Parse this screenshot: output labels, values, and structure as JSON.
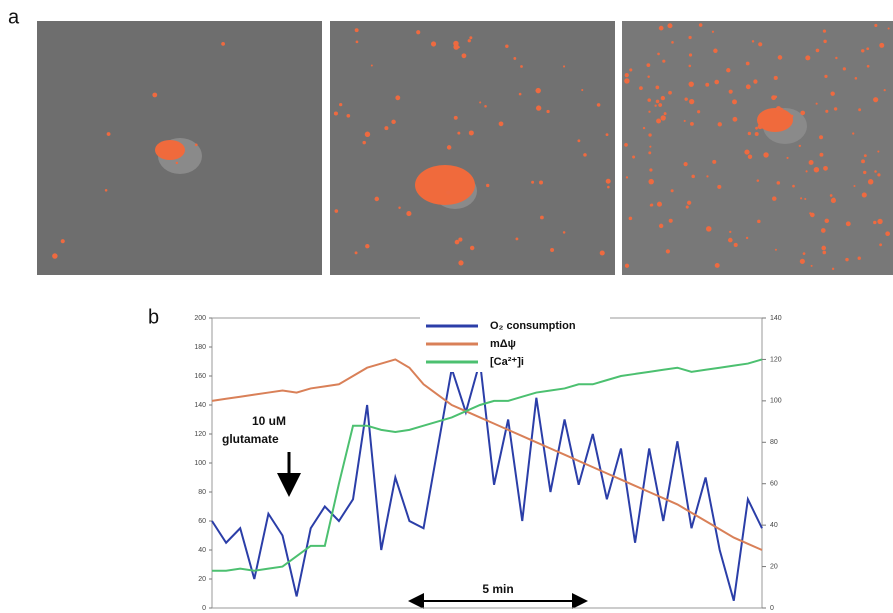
{
  "panel_labels": [
    "a",
    "b"
  ],
  "chart_data": {
    "type": "line",
    "categories": [
      null,
      null,
      null,
      null,
      null,
      null,
      null,
      null,
      null,
      null,
      null,
      null,
      null,
      null,
      null,
      null,
      null,
      null,
      null,
      null,
      null,
      null,
      null,
      null,
      null,
      null,
      null,
      null,
      null,
      null,
      null,
      null,
      null,
      null,
      null,
      null,
      null,
      null,
      null,
      null
    ],
    "series": [
      {
        "name": "O₂ consumption",
        "color": "#2b3ea8",
        "values": [
          60,
          45,
          55,
          20,
          65,
          50,
          8,
          55,
          70,
          60,
          75,
          140,
          40,
          90,
          60,
          55,
          110,
          165,
          135,
          170,
          85,
          130,
          60,
          145,
          80,
          130,
          85,
          120,
          75,
          110,
          45,
          110,
          60,
          115,
          55,
          90,
          40,
          5,
          75,
          55
        ]
      },
      {
        "name": "mΔψ",
        "color": "#d98058",
        "axis": "y2",
        "values": [
          100,
          101,
          102,
          103,
          104,
          105,
          104,
          106,
          107,
          108,
          112,
          116,
          118,
          120,
          116,
          108,
          103,
          98,
          95,
          92,
          89,
          86,
          83,
          80,
          77,
          74,
          71,
          68,
          65,
          62,
          59,
          56,
          53,
          50,
          46,
          42,
          38,
          34,
          31,
          28
        ]
      },
      {
        "name": "[Ca²⁺]i",
        "color": "#4cc070",
        "axis": "y2",
        "values": [
          18,
          18,
          19,
          18,
          19,
          20,
          25,
          30,
          30,
          60,
          88,
          88,
          86,
          85,
          86,
          88,
          90,
          92,
          95,
          98,
          100,
          100,
          102,
          104,
          105,
          106,
          108,
          108,
          110,
          112,
          113,
          114,
          115,
          116,
          114,
          115,
          116,
          117,
          118,
          120
        ]
      }
    ],
    "ylim": [
      0,
      200
    ],
    "yticks": [
      0,
      20,
      40,
      60,
      80,
      100,
      120,
      140,
      160,
      180,
      200
    ],
    "y2lim": [
      0,
      140
    ],
    "y2ticks": [
      0,
      20,
      40,
      60,
      80,
      100,
      120,
      140
    ],
    "annotations": [
      "10 uM",
      "glutamate",
      "5 min"
    ],
    "legend": "top"
  }
}
